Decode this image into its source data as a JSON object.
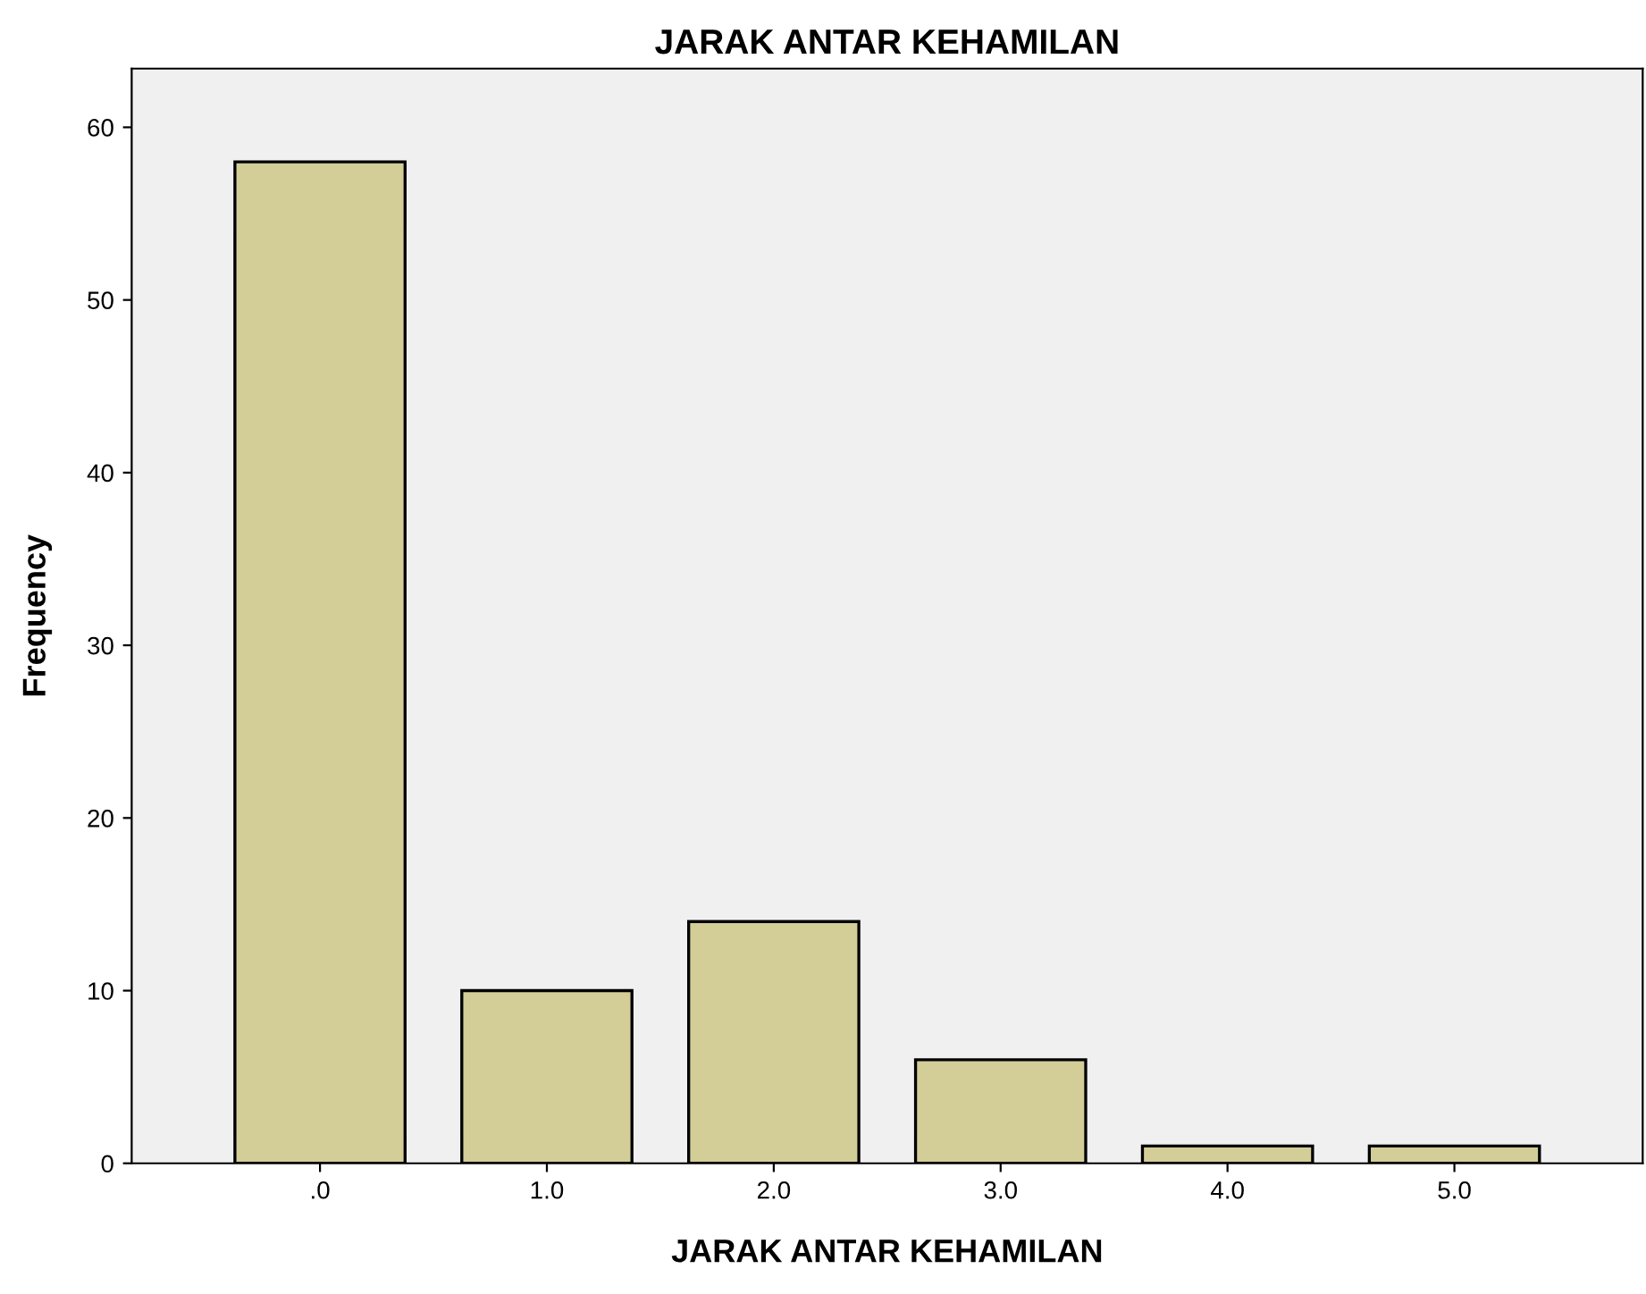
{
  "chart_data": {
    "type": "bar",
    "title": "JARAK ANTAR KEHAMILAN",
    "xlabel": "JARAK ANTAR KEHAMILAN",
    "ylabel": "Frequency",
    "categories": [
      ".0",
      "1.0",
      "2.0",
      "3.0",
      "4.0",
      "5.0"
    ],
    "values": [
      58,
      10,
      14,
      6,
      1,
      1
    ],
    "color": "#d3ce98",
    "ylim": [
      0,
      63.4
    ],
    "yticks": [
      0,
      10,
      20,
      30,
      40,
      50,
      60
    ],
    "grid": false,
    "legend": false
  }
}
